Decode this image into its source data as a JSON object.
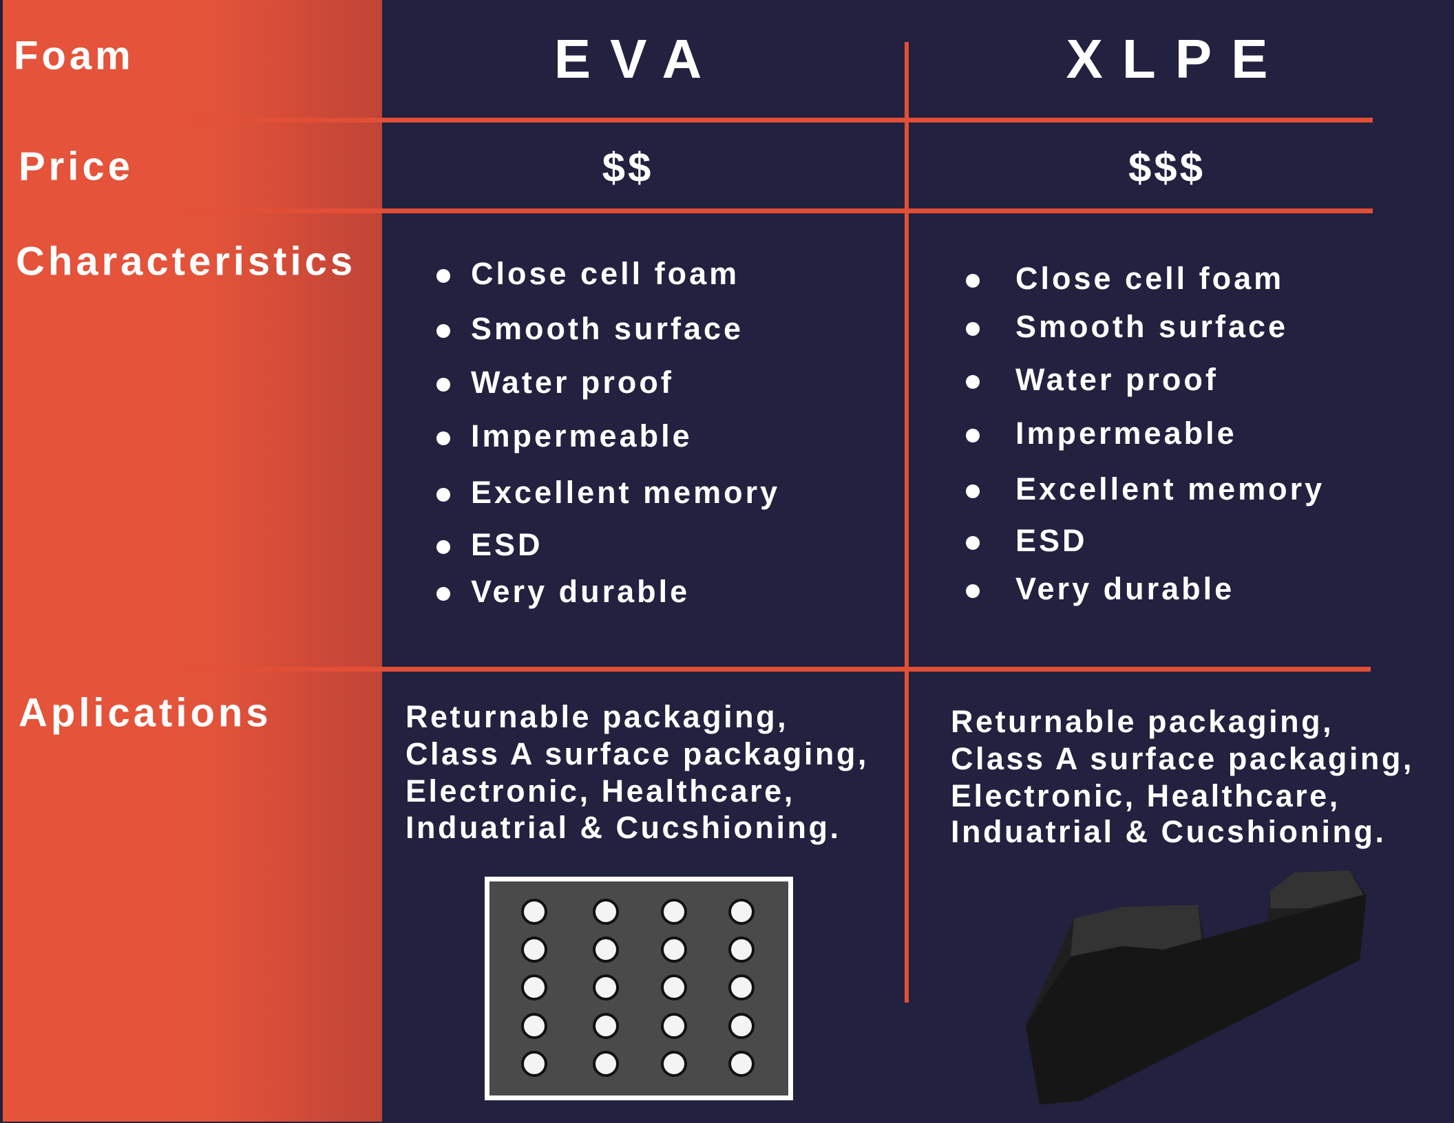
{
  "row_labels": [
    "Foam",
    "Price",
    "Characteristics",
    "Aplications"
  ],
  "columns": [
    {
      "name": "EVA",
      "price": "$$",
      "characteristics": [
        "Close cell foam",
        "Smooth surface",
        "Water proof",
        "Impermeable",
        "Excellent memory",
        "ESD",
        "Very durable"
      ],
      "applications": [
        "Returnable packaging,",
        "Class A surface packaging,",
        "Electronic, Healthcare,",
        "Induatrial & Cucshioning."
      ]
    },
    {
      "name": "XLPE",
      "price": "$$$",
      "characteristics": [
        "Close cell foam",
        "Smooth surface",
        "Water proof",
        "Impermeable",
        "Excellent memory",
        "ESD",
        "Very durable"
      ],
      "applications": [
        "Returnable packaging,",
        "Class A surface packaging,",
        "Electronic, Healthcare,",
        "Induatrial & Cucshioning."
      ]
    }
  ]
}
